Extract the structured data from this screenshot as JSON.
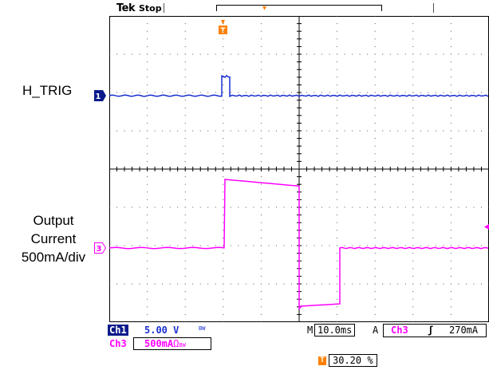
{
  "header": {
    "brand": "Tek",
    "acq_state": "Stop"
  },
  "labels": {
    "ch1_signal": "H_TRIG",
    "ch3_signal_line1": "Output",
    "ch3_signal_line2": "Current",
    "ch3_signal_line3": "500mA/div"
  },
  "markers": {
    "ch1": "1",
    "ch3": "3",
    "trigger": "T"
  },
  "readouts": {
    "ch1_label": "Ch1",
    "ch1_scale": "5.00 V",
    "ch1_coupling": "BW",
    "ch3_label": "Ch3",
    "ch3_scale": "500mA",
    "ch3_term": "Ω",
    "ch3_coupling": "BW",
    "timebase_prefix": "M",
    "timebase": "10.0ms",
    "trigger_mode": "A",
    "trigger_source": "Ch3",
    "trigger_slope": "ʃ",
    "trigger_level": "270mA",
    "trigger_position": "30.20 %"
  },
  "colors": {
    "ch1": "#1a2fd0",
    "ch3": "#ff00ff",
    "trigger": "#ff8000",
    "grid": "#000000"
  }
}
